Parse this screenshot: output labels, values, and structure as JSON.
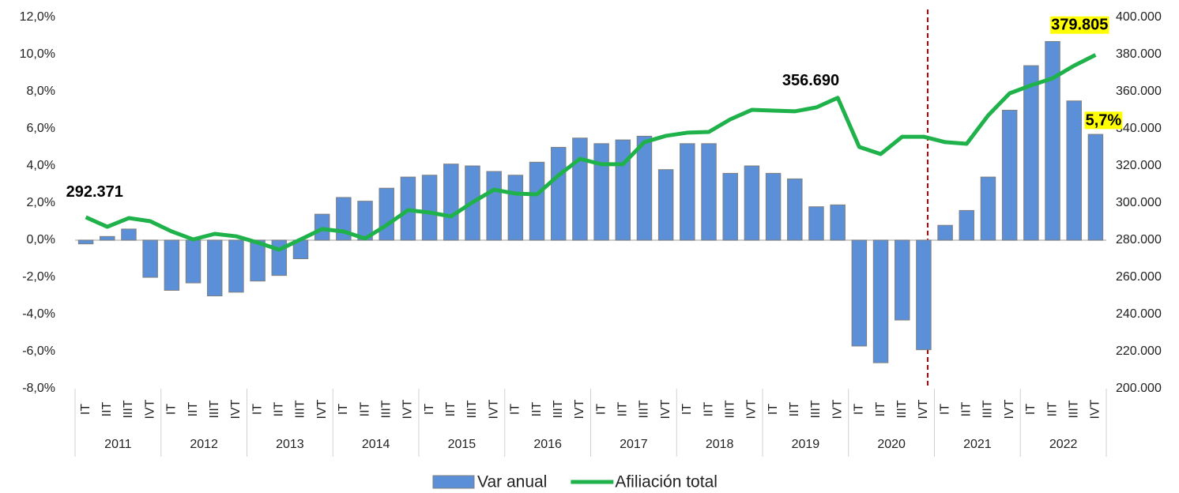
{
  "chart_data": {
    "type": "bar_line",
    "categories": [
      "IT",
      "IIT",
      "IIIT",
      "IVT",
      "IT",
      "IIT",
      "IIIT",
      "IVT",
      "IT",
      "IIT",
      "IIIT",
      "IVT",
      "IT",
      "IIT",
      "IIIT",
      "IVT",
      "IT",
      "IIT",
      "IIIT",
      "IVT",
      "IT",
      "IIT",
      "IIIT",
      "IVT",
      "IT",
      "IIT",
      "IIIT",
      "IVT",
      "IT",
      "IIT",
      "IIIT",
      "IVT",
      "IT",
      "IIT",
      "IIIT",
      "IVT",
      "IT",
      "IIT",
      "IIIT",
      "IVT",
      "IT",
      "IIT",
      "IIIT",
      "IVT",
      "IT",
      "IIT",
      "IIIT",
      "IVT"
    ],
    "years": [
      "2011",
      "2012",
      "2013",
      "2014",
      "2015",
      "2016",
      "2017",
      "2018",
      "2019",
      "2020",
      "2021",
      "2022"
    ],
    "series": [
      {
        "name": "Var anual",
        "type": "bar",
        "color": "#5b8fd8",
        "values": [
          -0.2,
          0.2,
          0.6,
          -2.0,
          -2.7,
          -2.3,
          -3.0,
          -2.8,
          -2.2,
          -1.9,
          -1.0,
          1.4,
          2.3,
          2.1,
          2.8,
          3.4,
          3.5,
          4.1,
          4.0,
          3.7,
          3.5,
          4.2,
          5.0,
          5.5,
          5.2,
          5.4,
          5.6,
          3.8,
          5.2,
          5.2,
          3.6,
          4.0,
          3.6,
          3.3,
          1.8,
          1.9,
          -5.7,
          -6.6,
          -4.3,
          -5.9,
          0.8,
          1.6,
          3.4,
          7.0,
          9.4,
          10.7,
          7.5,
          5.7
        ],
        "value_labels": [
          null,
          null,
          null,
          null,
          null,
          null,
          null,
          null,
          null,
          null,
          null,
          null,
          null,
          null,
          null,
          null,
          null,
          null,
          null,
          null,
          null,
          null,
          null,
          null,
          null,
          null,
          null,
          null,
          null,
          null,
          null,
          null,
          null,
          null,
          null,
          null,
          null,
          null,
          null,
          null,
          null,
          null,
          null,
          null,
          null,
          null,
          null,
          "5,7%"
        ]
      },
      {
        "name": "Afiliación total",
        "type": "line",
        "axis": "y2",
        "color": "#1fb24a",
        "values": [
          292371,
          287200,
          291900,
          290200,
          284700,
          280400,
          283400,
          282100,
          278700,
          274900,
          280400,
          286000,
          284700,
          280900,
          288100,
          296200,
          294900,
          292800,
          300400,
          307200,
          305100,
          304700,
          314900,
          323800,
          320900,
          320900,
          332800,
          336200,
          337900,
          338300,
          345100,
          350200,
          349800,
          349400,
          351500,
          356690,
          330200,
          326400,
          335700,
          335700,
          332800,
          331900,
          347200,
          359100,
          363400,
          367200,
          374000,
          379805
        ],
        "value_labels": [
          "292.371",
          null,
          null,
          null,
          null,
          null,
          null,
          null,
          null,
          null,
          null,
          null,
          null,
          null,
          null,
          null,
          null,
          null,
          null,
          null,
          null,
          null,
          null,
          null,
          null,
          null,
          null,
          null,
          null,
          null,
          null,
          null,
          null,
          null,
          null,
          "356.690",
          null,
          null,
          null,
          null,
          null,
          null,
          null,
          null,
          null,
          null,
          null,
          "379.805"
        ]
      }
    ],
    "ylim": [
      -8,
      12
    ],
    "yticks": [
      {
        "value": -8,
        "label": "-8,0%"
      },
      {
        "value": -6,
        "label": "-6,0%"
      },
      {
        "value": -4,
        "label": "-4,0%"
      },
      {
        "value": -2,
        "label": "-2,0%"
      },
      {
        "value": 0,
        "label": "0,0%"
      },
      {
        "value": 2,
        "label": "2,0%"
      },
      {
        "value": 4,
        "label": "4,0%"
      },
      {
        "value": 6,
        "label": "6,0%"
      },
      {
        "value": 8,
        "label": "8,0%"
      },
      {
        "value": 10,
        "label": "10,0%"
      },
      {
        "value": 12,
        "label": "12,0%"
      }
    ],
    "y2lim": [
      200000,
      400000
    ],
    "y2ticks": [
      {
        "value": 200000,
        "label": "200.000"
      },
      {
        "value": 220000,
        "label": "220.000"
      },
      {
        "value": 240000,
        "label": "240.000"
      },
      {
        "value": 260000,
        "label": "260.000"
      },
      {
        "value": 280000,
        "label": "280.000"
      },
      {
        "value": 300000,
        "label": "300.000"
      },
      {
        "value": 320000,
        "label": "320.000"
      },
      {
        "value": 340000,
        "label": "340.000"
      },
      {
        "value": 360000,
        "label": "360.000"
      },
      {
        "value": 380000,
        "label": "380.000"
      },
      {
        "value": 400000,
        "label": "400.000"
      }
    ],
    "legend": "bottom"
  }
}
